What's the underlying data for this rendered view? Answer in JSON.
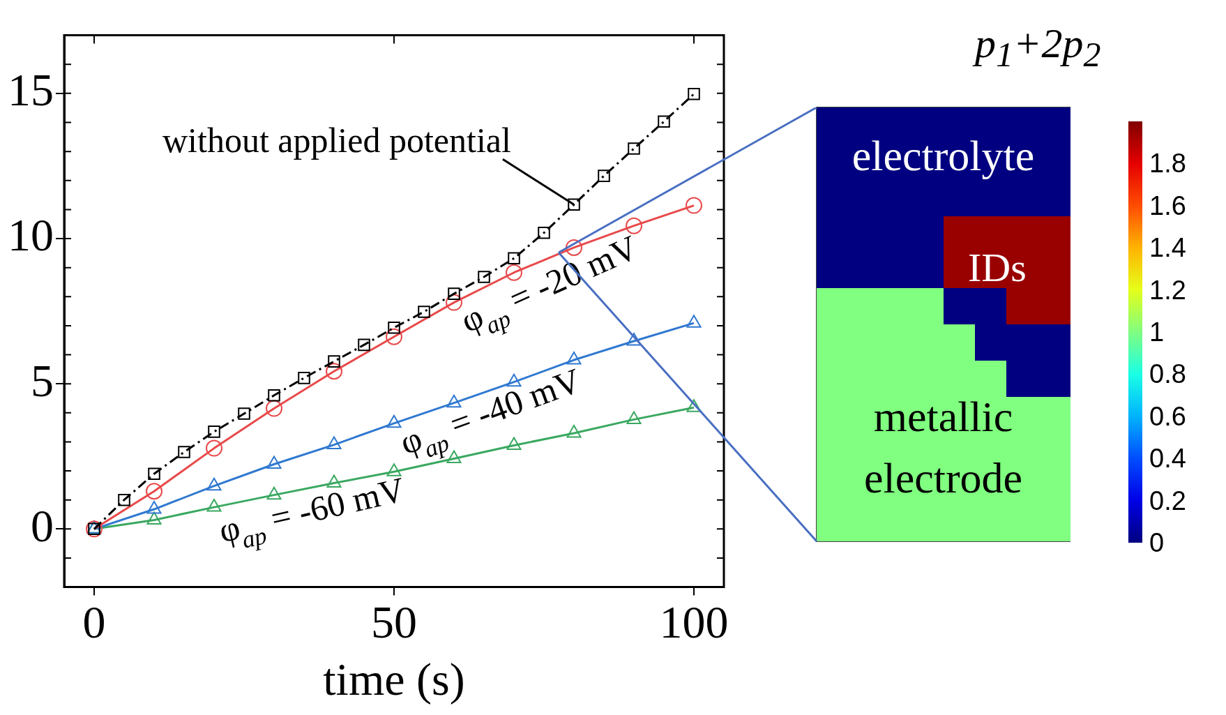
{
  "chart_data": [
    {
      "type": "line",
      "xlabel": "time (s)",
      "xlim": [
        -5,
        105
      ],
      "ylim": [
        -2,
        17
      ],
      "xticks": [
        0,
        50,
        100
      ],
      "yticks": [
        0,
        5,
        10,
        15
      ],
      "grid": false,
      "annotations": [
        {
          "text": "without applied potential",
          "x": 80,
          "y": 11.17
        },
        {
          "text": "φ$_{ap}$ = -20 mV",
          "x": 60,
          "y": 7.8
        },
        {
          "text": "φ$_{ap}$ = -40 mV",
          "x": 50,
          "y": 3.64
        },
        {
          "text": "φ$_{ap}$ = -60 mV",
          "x": 20,
          "y": 0.75
        }
      ],
      "series": [
        {
          "color": "#000000",
          "marker": "square",
          "line_style": "dashed",
          "x": [
            0,
            5,
            10,
            15,
            20,
            25,
            30,
            35,
            40,
            45,
            50,
            55,
            60,
            65,
            70,
            75,
            80,
            85,
            90,
            95,
            100
          ],
          "values": [
            0,
            1.0,
            1.9,
            2.65,
            3.35,
            3.97,
            4.6,
            5.2,
            5.77,
            6.34,
            6.93,
            7.48,
            8.1,
            8.68,
            9.32,
            10.2,
            11.17,
            12.16,
            13.1,
            14.03,
            14.98
          ]
        },
        {
          "color": "#e8494a",
          "marker": "circle",
          "line_style": "solid",
          "x": [
            0,
            10,
            20,
            30,
            40,
            50,
            60,
            70,
            80,
            90,
            100
          ],
          "values": [
            0,
            1.3,
            2.78,
            4.15,
            5.43,
            6.62,
            7.8,
            8.83,
            9.69,
            10.44,
            11.14
          ]
        },
        {
          "color": "#2f78d0",
          "marker": "triangle",
          "line_style": "solid",
          "x": [
            0,
            10,
            20,
            30,
            40,
            50,
            60,
            70,
            80,
            90,
            100
          ],
          "values": [
            0,
            0.68,
            1.48,
            2.23,
            2.9,
            3.64,
            4.34,
            5.06,
            5.82,
            6.47,
            7.09
          ]
        },
        {
          "color": "#3aa860",
          "marker": "triangle",
          "line_style": "solid",
          "x": [
            0,
            10,
            20,
            30,
            40,
            50,
            60,
            70,
            80,
            90,
            100
          ],
          "values": [
            0,
            0.31,
            0.75,
            1.17,
            1.58,
            1.97,
            2.42,
            2.88,
            3.3,
            3.77,
            4.18
          ]
        }
      ]
    },
    {
      "type": "heatmap",
      "clabel": "p$_{1}$+2p$_{2}$",
      "clim": [
        0,
        2
      ],
      "cticks": [
        0,
        0.2,
        0.4,
        0.6,
        0.8,
        1,
        1.2,
        1.4,
        1.6,
        1.8
      ],
      "annotations": [
        "electrolyte",
        "IDs",
        "metallic electrode"
      ],
      "categories": [
        null,
        null,
        null,
        null,
        null,
        null,
        null,
        null
      ],
      "y_categories": [
        null,
        null,
        null,
        null,
        null,
        null,
        null,
        null,
        null,
        null,
        null,
        null
      ],
      "cells": [
        [
          0,
          0,
          0,
          0,
          0,
          0,
          0,
          0
        ],
        [
          0,
          0,
          0,
          0,
          0,
          0,
          0,
          0
        ],
        [
          0,
          0,
          0,
          0,
          0,
          0,
          0,
          0
        ],
        [
          0,
          0,
          0,
          0,
          1.95,
          1.95,
          1.95,
          1.95
        ],
        [
          0,
          0,
          0,
          0,
          1.95,
          1.95,
          1.95,
          1.95
        ],
        [
          1,
          1,
          1,
          1,
          0,
          0,
          1.95,
          1.95
        ],
        [
          1,
          1,
          1,
          1,
          1,
          0,
          0,
          0
        ],
        [
          1,
          1,
          1,
          1,
          1,
          1,
          0,
          0
        ],
        [
          1,
          1,
          1,
          1,
          1,
          1,
          1,
          1
        ],
        [
          1,
          1,
          1,
          1,
          1,
          1,
          1,
          1
        ],
        [
          1,
          1,
          1,
          1,
          1,
          1,
          1,
          1
        ],
        [
          1,
          1,
          1,
          1,
          1,
          1,
          1,
          1
        ]
      ]
    }
  ]
}
